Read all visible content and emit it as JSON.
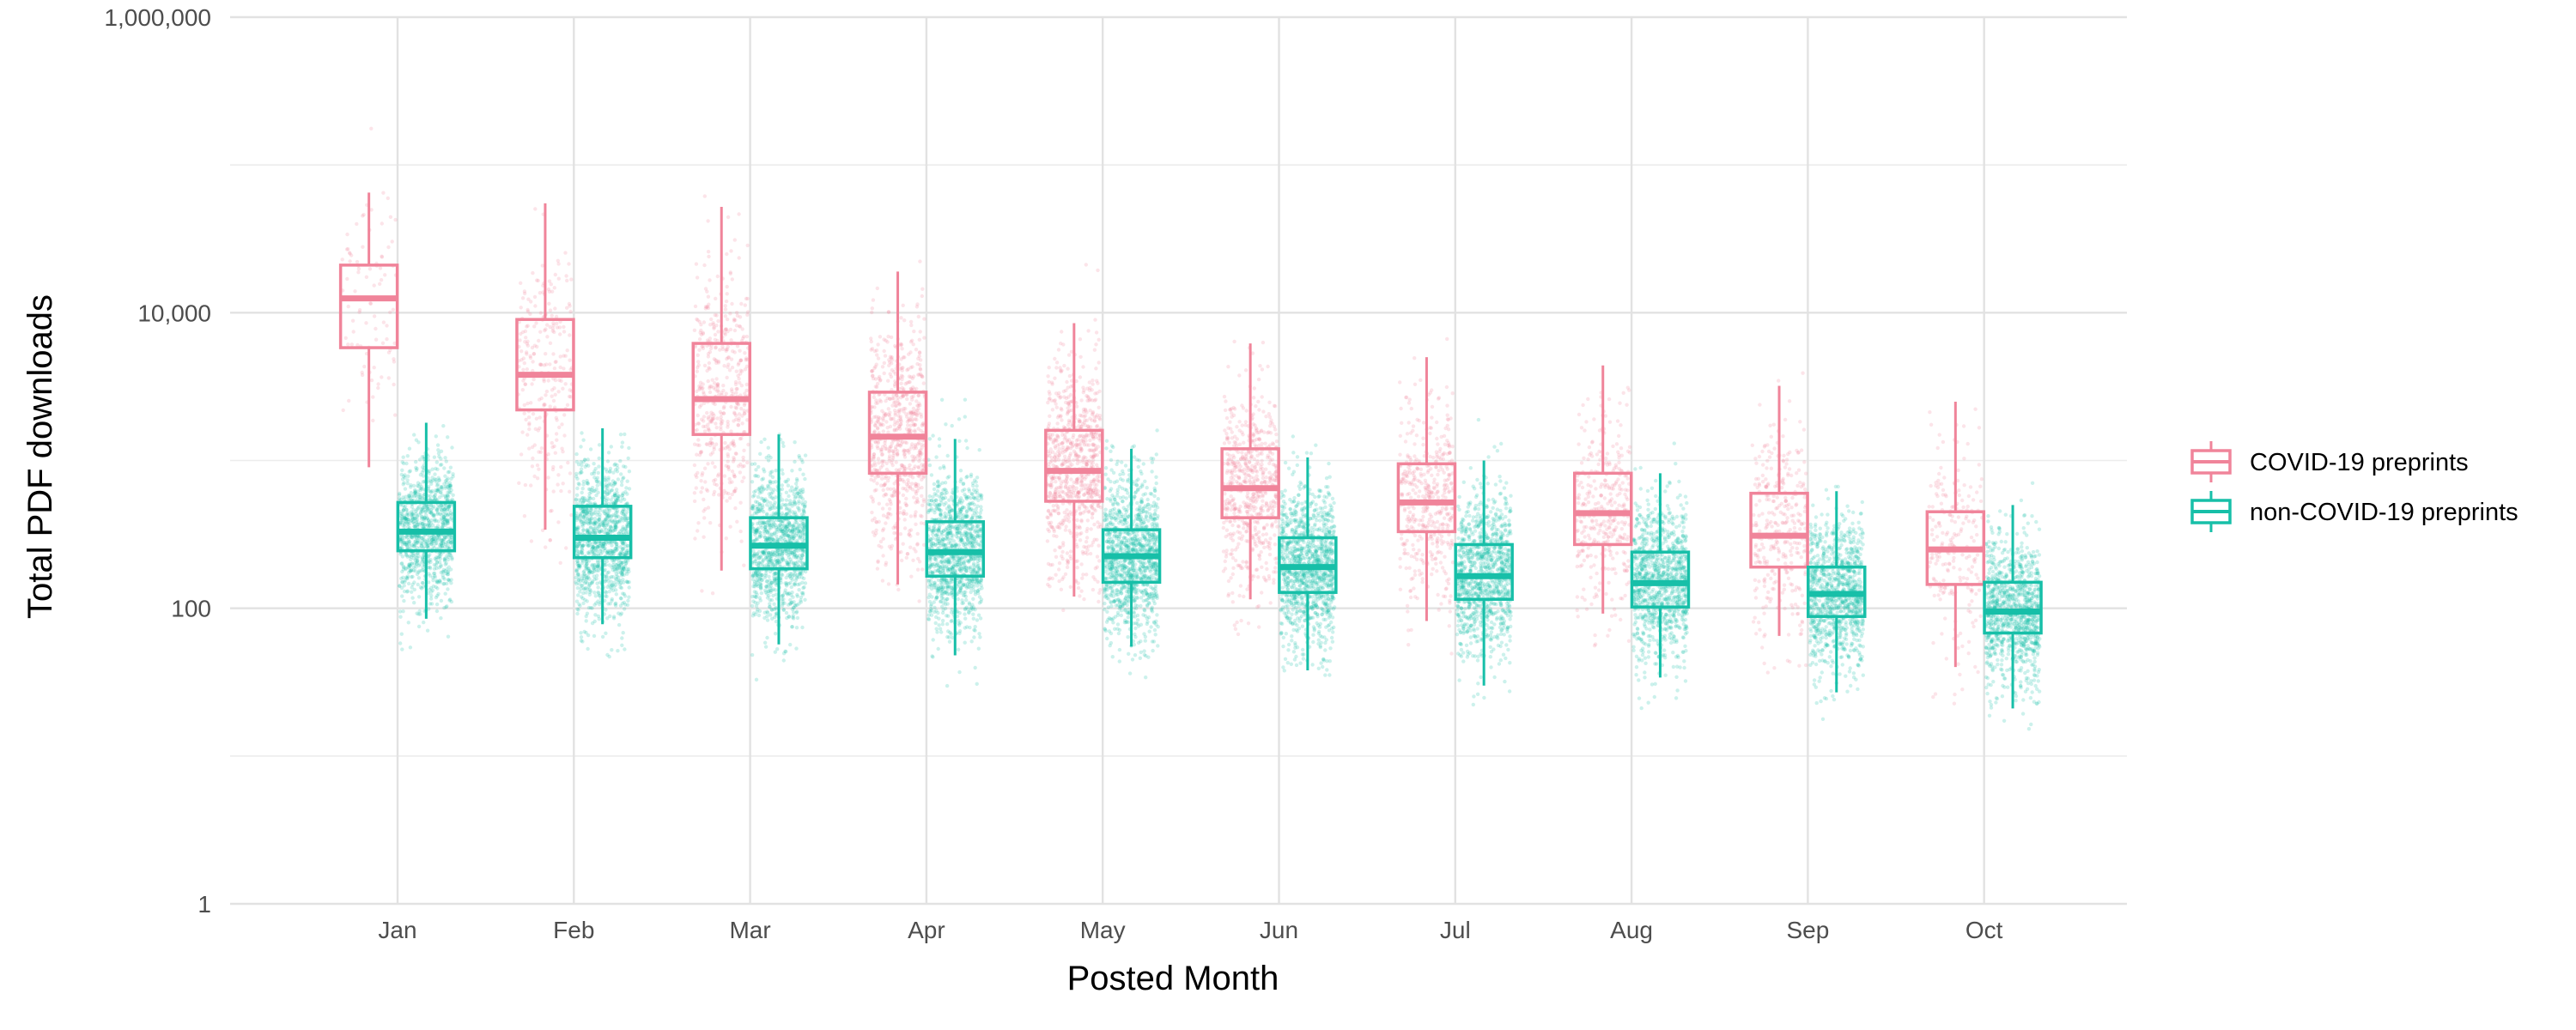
{
  "chart_data": {
    "type": "boxplot",
    "title": "",
    "xlabel": "Posted Month",
    "ylabel": "Total PDF downloads",
    "y_scale": "log10",
    "ylim": [
      1,
      1000000
    ],
    "y_ticks": [
      {
        "value": 1,
        "label": "1"
      },
      {
        "value": 100,
        "label": "100"
      },
      {
        "value": 10000,
        "label": "10,000"
      },
      {
        "value": 1000000,
        "label": "1,000,000"
      }
    ],
    "y_minor_ticks": [
      10,
      1000,
      100000
    ],
    "categories": [
      "Jan",
      "Feb",
      "Mar",
      "Apr",
      "May",
      "Jun",
      "Jul",
      "Aug",
      "Sep",
      "Oct"
    ],
    "grid": true,
    "legend_position": "right",
    "jitter_points_shown": true,
    "series": [
      {
        "name": "COVID-19 preprints",
        "color": "#F0849A",
        "boxes": [
          {
            "lower_whisker": 900,
            "q1": 5800,
            "median": 12500,
            "q3": 21000,
            "upper_whisker": 65000,
            "n_points": 90
          },
          {
            "lower_whisker": 340,
            "q1": 2200,
            "median": 3800,
            "q3": 9000,
            "upper_whisker": 55000,
            "n_points": 260
          },
          {
            "lower_whisker": 180,
            "q1": 1500,
            "median": 2600,
            "q3": 6200,
            "upper_whisker": 52000,
            "n_points": 480
          },
          {
            "lower_whisker": 145,
            "q1": 820,
            "median": 1450,
            "q3": 2900,
            "upper_whisker": 19000,
            "n_points": 720
          },
          {
            "lower_whisker": 120,
            "q1": 530,
            "median": 850,
            "q3": 1600,
            "upper_whisker": 8500,
            "n_points": 800
          },
          {
            "lower_whisker": 115,
            "q1": 410,
            "median": 650,
            "q3": 1200,
            "upper_whisker": 6200,
            "n_points": 620
          },
          {
            "lower_whisker": 82,
            "q1": 330,
            "median": 520,
            "q3": 950,
            "upper_whisker": 5000,
            "n_points": 450
          },
          {
            "lower_whisker": 92,
            "q1": 270,
            "median": 440,
            "q3": 820,
            "upper_whisker": 4400,
            "n_points": 350
          },
          {
            "lower_whisker": 65,
            "q1": 190,
            "median": 310,
            "q3": 600,
            "upper_whisker": 3200,
            "n_points": 330
          },
          {
            "lower_whisker": 40,
            "q1": 145,
            "median": 250,
            "q3": 450,
            "upper_whisker": 2500,
            "n_points": 220
          }
        ]
      },
      {
        "name": "non-COVID-19 preprints",
        "color": "#17BFA8",
        "boxes": [
          {
            "lower_whisker": 85,
            "q1": 245,
            "median": 330,
            "q3": 520,
            "upper_whisker": 1800,
            "n_points": 1000
          },
          {
            "lower_whisker": 78,
            "q1": 220,
            "median": 300,
            "q3": 490,
            "upper_whisker": 1650,
            "n_points": 1050
          },
          {
            "lower_whisker": 57,
            "q1": 185,
            "median": 265,
            "q3": 410,
            "upper_whisker": 1500,
            "n_points": 1050
          },
          {
            "lower_whisker": 48,
            "q1": 165,
            "median": 240,
            "q3": 385,
            "upper_whisker": 1400,
            "n_points": 1100
          },
          {
            "lower_whisker": 55,
            "q1": 150,
            "median": 225,
            "q3": 340,
            "upper_whisker": 1200,
            "n_points": 1150
          },
          {
            "lower_whisker": 38,
            "q1": 128,
            "median": 190,
            "q3": 300,
            "upper_whisker": 1050,
            "n_points": 1150
          },
          {
            "lower_whisker": 30,
            "q1": 115,
            "median": 165,
            "q3": 270,
            "upper_whisker": 1000,
            "n_points": 1050
          },
          {
            "lower_whisker": 34,
            "q1": 102,
            "median": 148,
            "q3": 240,
            "upper_whisker": 820,
            "n_points": 1050
          },
          {
            "lower_whisker": 27,
            "q1": 88,
            "median": 125,
            "q3": 190,
            "upper_whisker": 620,
            "n_points": 1000
          },
          {
            "lower_whisker": 21,
            "q1": 68,
            "median": 95,
            "q3": 150,
            "upper_whisker": 500,
            "n_points": 1050
          }
        ]
      }
    ]
  }
}
